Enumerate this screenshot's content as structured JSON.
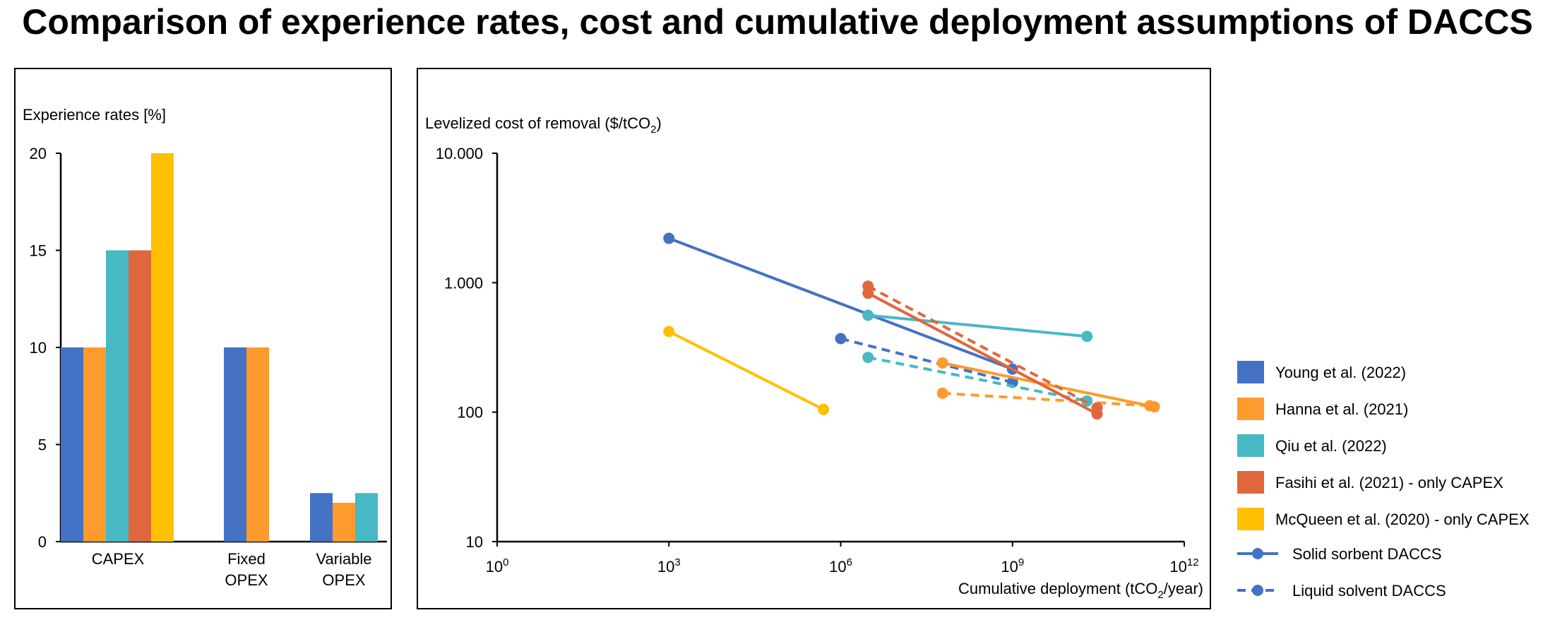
{
  "title": "Comparison of experience rates, cost and cumulative deployment assumptions of DACCS",
  "colors": {
    "young": "#4472C4",
    "hanna": "#FF9A2E",
    "qiu": "#47B9C4",
    "fasihi": "#E0673D",
    "mcqueen": "#FFC000",
    "axis": "#000000"
  },
  "legend": {
    "items": [
      {
        "label": "Young et al. (2022)",
        "color": "#4472C4"
      },
      {
        "label": "Hanna et al. (2021)",
        "color": "#FF9A2E"
      },
      {
        "label": "Qiu et al. (2022)",
        "color": "#47B9C4"
      },
      {
        "label": "Fasihi et al. (2021) - only CAPEX",
        "color": "#E0673D"
      },
      {
        "label": "McQueen et al. (2020) - only CAPEX",
        "color": "#FFC000"
      }
    ],
    "line_styles": [
      {
        "label": "Solid sorbent DACCS",
        "style": "solid"
      },
      {
        "label": "Liquid solvent DACCS",
        "style": "dashed"
      }
    ]
  },
  "chart_data": [
    {
      "type": "bar",
      "ylabel": "Experience rates [%]",
      "ylim": [
        0,
        20
      ],
      "yticks": [
        "0",
        "5",
        "10",
        "15",
        "20"
      ],
      "categories": [
        {
          "label_lines": [
            "CAPEX"
          ]
        },
        {
          "label_lines": [
            "Fixed",
            "OPEX"
          ]
        },
        {
          "label_lines": [
            "Variable",
            "OPEX"
          ]
        }
      ],
      "groups": [
        [
          {
            "series": "Young et al. (2022)",
            "value": 10
          },
          {
            "series": "Hanna et al. (2021)",
            "value": 10
          },
          {
            "series": "Qiu et al. (2022)",
            "value": 15
          },
          {
            "series": "Fasihi et al. (2021) - only CAPEX",
            "value": 15
          },
          {
            "series": "McQueen et al. (2020) - only CAPEX",
            "value": 20
          }
        ],
        [
          {
            "series": "Young et al. (2022)",
            "value": 10
          },
          {
            "series": "Hanna et al. (2021)",
            "value": 10
          }
        ],
        [
          {
            "series": "Young et al. (2022)",
            "value": 2.5
          },
          {
            "series": "Hanna et al. (2021)",
            "value": 2
          },
          {
            "series": "Qiu et al. (2022)",
            "value": 2.5
          }
        ]
      ]
    },
    {
      "type": "line",
      "xscale": "log",
      "yscale": "log",
      "ylabel_main": "Levelized cost of removal ($/tCO",
      "ylabel_sub": "2",
      "ylabel_end": ")",
      "xlabel_main": "Cumulative deployment (tCO",
      "xlabel_sub": "2",
      "xlabel_end": "/year)",
      "xlim_exp": [
        0,
        12
      ],
      "ylim": [
        10,
        10000
      ],
      "xticks": [
        {
          "base": "10",
          "exp": "0"
        },
        {
          "base": "10",
          "exp": "3"
        },
        {
          "base": "10",
          "exp": "6"
        },
        {
          "base": "10",
          "exp": "9"
        },
        {
          "base": "10",
          "exp": "12"
        }
      ],
      "yticks": [
        {
          "label": "10",
          "value": 10
        },
        {
          "label": "100",
          "value": 100
        },
        {
          "label": "1.000",
          "value": 1000
        },
        {
          "label": "10.000",
          "value": 10000
        }
      ],
      "series": [
        {
          "name": "Young et al. (2022)",
          "style": "solid",
          "points": [
            [
              1000,
              2200
            ],
            [
              1000000000,
              215
            ]
          ]
        },
        {
          "name": "Young et al. (2022)",
          "style": "dashed",
          "points": [
            [
              1000000,
              370
            ],
            [
              1000000000,
              170
            ]
          ]
        },
        {
          "name": "Hanna et al. (2021)",
          "style": "solid",
          "points": [
            [
              60000000,
              240
            ],
            [
              300000000000,
              110
            ]
          ]
        },
        {
          "name": "Hanna et al. (2021)",
          "style": "dashed",
          "points": [
            [
              60000000,
              140
            ],
            [
              250000000000,
              112
            ]
          ]
        },
        {
          "name": "Qiu et al. (2022)",
          "style": "solid",
          "points": [
            [
              3000000,
              560
            ],
            [
              20000000000,
              385
            ]
          ]
        },
        {
          "name": "Qiu et al. (2022)",
          "style": "dashed",
          "points": [
            [
              3000000,
              265
            ],
            [
              20000000000,
              122
            ]
          ]
        },
        {
          "name": "Fasihi et al. (2021) - only CAPEX",
          "style": "solid",
          "points": [
            [
              3000000,
              830
            ],
            [
              30000000000,
              97
            ]
          ]
        },
        {
          "name": "Fasihi et al. (2021) - only CAPEX",
          "style": "dashed",
          "points": [
            [
              3000000,
              940
            ],
            [
              30000000000,
              108
            ]
          ]
        },
        {
          "name": "McQueen et al. (2020) - only CAPEX",
          "style": "solid",
          "points": [
            [
              1000,
              420
            ],
            [
              500000,
              105
            ]
          ]
        }
      ]
    }
  ]
}
